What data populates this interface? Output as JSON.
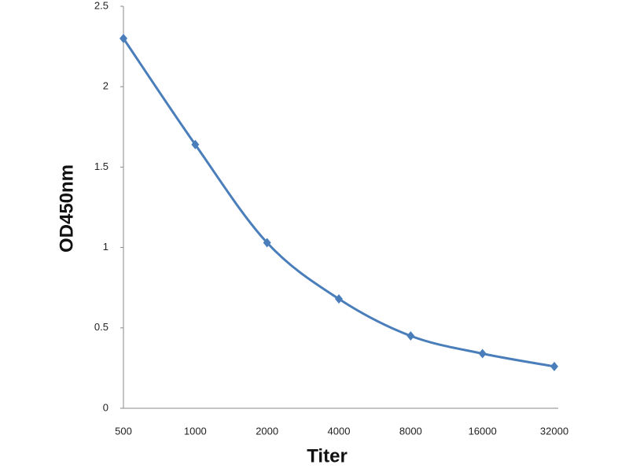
{
  "chart_data": {
    "type": "line",
    "x_label": "Titer",
    "y_label": "OD450nm",
    "categories": [
      "500",
      "1000",
      "2000",
      "4000",
      "8000",
      "16000",
      "32000"
    ],
    "values": [
      2.3,
      1.64,
      1.03,
      0.68,
      0.45,
      0.34,
      0.26
    ],
    "color": "#4a7ebb",
    "ylim": [
      0,
      2.5
    ],
    "yticks": [
      0,
      0.5,
      1,
      1.5,
      2,
      2.5
    ],
    "grid": false
  }
}
